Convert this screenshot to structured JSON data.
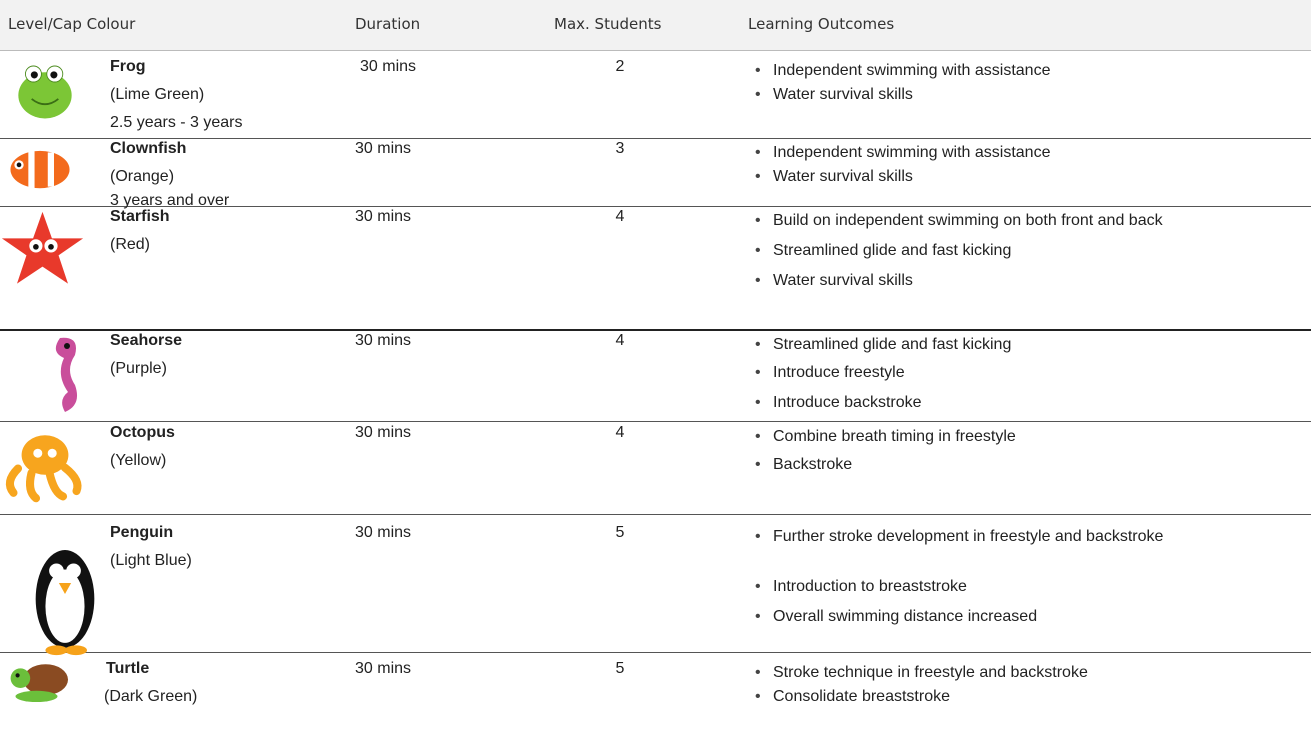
{
  "table": {
    "header": [
      "Level/Cap Colour",
      "Duration",
      "Max. Students",
      "Learning Outcomes"
    ],
    "rows": [
      {
        "name": "Frog",
        "colour": "(Lime Green)",
        "age": "2.5 years - 3 years",
        "duration": "30 mins",
        "students": 2,
        "outcomes": [
          "Independent swimming with assistance",
          "Water survival skills"
        ]
      },
      {
        "name": "Clownfish",
        "colour": "(Orange)",
        "age": "3 years and over",
        "duration": "30 mins",
        "students": 3,
        "outcomes": [
          "Independent swimming with assistance",
          "Water survival skills"
        ]
      },
      {
        "name": "Starfish",
        "colour": "(Red)",
        "duration": "30 mins",
        "students": 4,
        "outcomes": [
          "Build on independent swimming on both front and back",
          "Streamlined glide and fast kicking",
          "Water survival skills"
        ]
      },
      {
        "name": "Seahorse",
        "colour": "(Purple)",
        "duration": "30 mins",
        "students": 4,
        "outcomes": [
          "Streamlined glide and fast kicking",
          "Introduce freestyle",
          "Introduce backstroke"
        ]
      },
      {
        "name": "Octopus",
        "colour": "(Yellow)",
        "duration": "30 mins",
        "students": 4,
        "outcomes": [
          "Combine breath timing in freestyle",
          "Backstroke"
        ]
      },
      {
        "name": "Penguin",
        "colour": "(Light Blue)",
        "duration": "30 mins",
        "students": 5,
        "outcomes": [
          "Further stroke development in freestyle and backstroke",
          "Introduction to breaststroke",
          "Overall swimming distance increased"
        ]
      },
      {
        "name": "Turtle",
        "colour": "(Dark Green)",
        "duration": "30 mins",
        "students": 5,
        "outcomes": [
          "Stroke technique in freestyle and backstroke",
          "Consolidate breaststroke"
        ]
      }
    ]
  }
}
